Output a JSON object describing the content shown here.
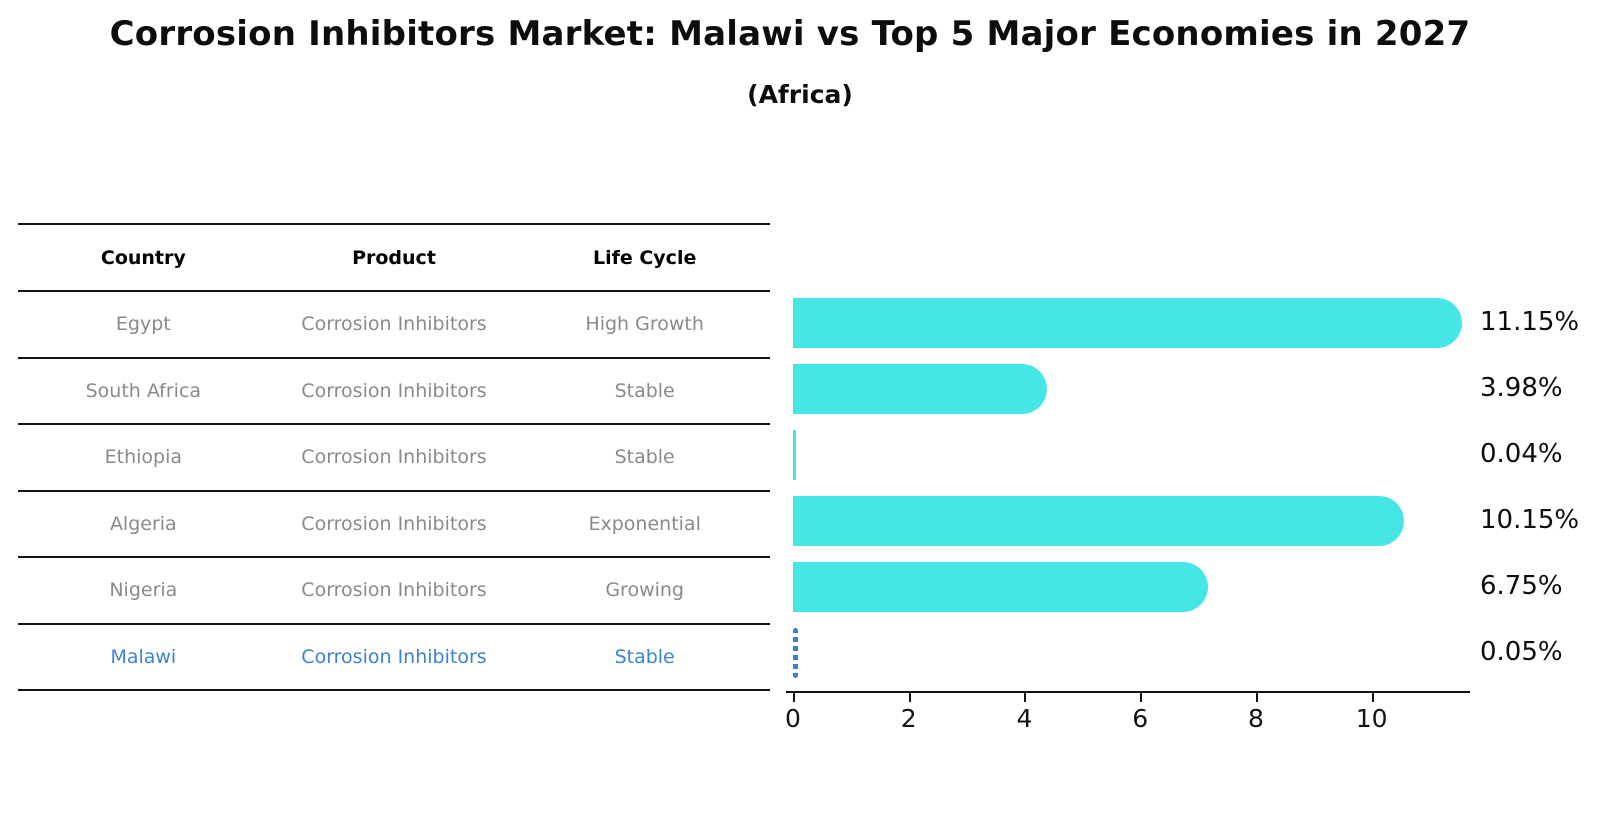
{
  "title": "Corrosion Inhibitors Market: Malawi vs Top 5 Major Economies in 2027",
  "subtitle": "(Africa)",
  "table": {
    "headers": [
      "Country",
      "Product",
      "Life Cycle"
    ],
    "rows": [
      {
        "country": "Egypt",
        "product": "Corrosion Inhibitors",
        "life_cycle": "High Growth",
        "highlight": false
      },
      {
        "country": "South Africa",
        "product": "Corrosion Inhibitors",
        "life_cycle": "Stable",
        "highlight": false
      },
      {
        "country": "Ethiopia",
        "product": "Corrosion Inhibitors",
        "life_cycle": "Stable",
        "highlight": false
      },
      {
        "country": "Algeria",
        "product": "Corrosion Inhibitors",
        "life_cycle": "Exponential",
        "highlight": false
      },
      {
        "country": "Nigeria",
        "product": "Corrosion Inhibitors",
        "life_cycle": "Growing",
        "highlight": false
      },
      {
        "country": "Malawi",
        "product": "Corrosion Inhibitors",
        "life_cycle": "Stable",
        "highlight": true
      }
    ]
  },
  "chart_data": {
    "type": "bar",
    "orientation": "horizontal",
    "title": "Corrosion Inhibitors Market: Malawi vs Top 5 Major Economies in 2027 (Africa)",
    "categories": [
      "Egypt",
      "South Africa",
      "Ethiopia",
      "Algeria",
      "Nigeria",
      "Malawi"
    ],
    "values": [
      11.15,
      3.98,
      0.04,
      10.15,
      6.75,
      0.05
    ],
    "labels": [
      "11.15%",
      "3.98%",
      "0.04%",
      "10.15%",
      "6.75%",
      "0.05%"
    ],
    "x_ticks": [
      0,
      2,
      4,
      6,
      8,
      10
    ],
    "xlim": [
      0,
      11.7
    ],
    "grid": false,
    "legend": "none",
    "highlight_index": 5
  },
  "colors": {
    "bar": "#46e6e6",
    "highlight": "#3b82d0",
    "row_text": "#8a8a8a",
    "header_text": "#000000",
    "axis": "#141414"
  }
}
